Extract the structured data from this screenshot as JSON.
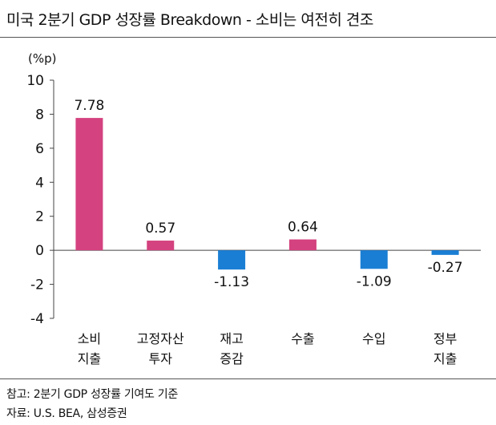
{
  "title": "미국 2분기 GDP 성장률 Breakdown - 소비는 여전히 견조",
  "note_source": "참고: 2분기 GDP 성장률 기여도 기준",
  "note_data": "자료: U.S. BEA, 삼성증권",
  "colors": {
    "positive": "#d4427f",
    "negative": "#1a7fd4",
    "axis": "#444444"
  },
  "chart_data": {
    "type": "bar",
    "ylabel": "(%p)",
    "ylim": [
      -4,
      10
    ],
    "yticks": [
      10,
      8,
      6,
      4,
      2,
      0,
      -2,
      -4
    ],
    "categories": [
      [
        "소비",
        "지출"
      ],
      [
        "고정자산",
        "투자"
      ],
      [
        "재고",
        "증감"
      ],
      [
        "수출"
      ],
      [
        "수입"
      ],
      [
        "정부",
        "지출"
      ]
    ],
    "values": [
      7.78,
      0.57,
      -1.13,
      0.64,
      -1.09,
      -0.27
    ],
    "data_labels": [
      "7.78",
      "0.57",
      "-1.13",
      "0.64",
      "-1.09",
      "-0.27"
    ],
    "grid": false
  }
}
